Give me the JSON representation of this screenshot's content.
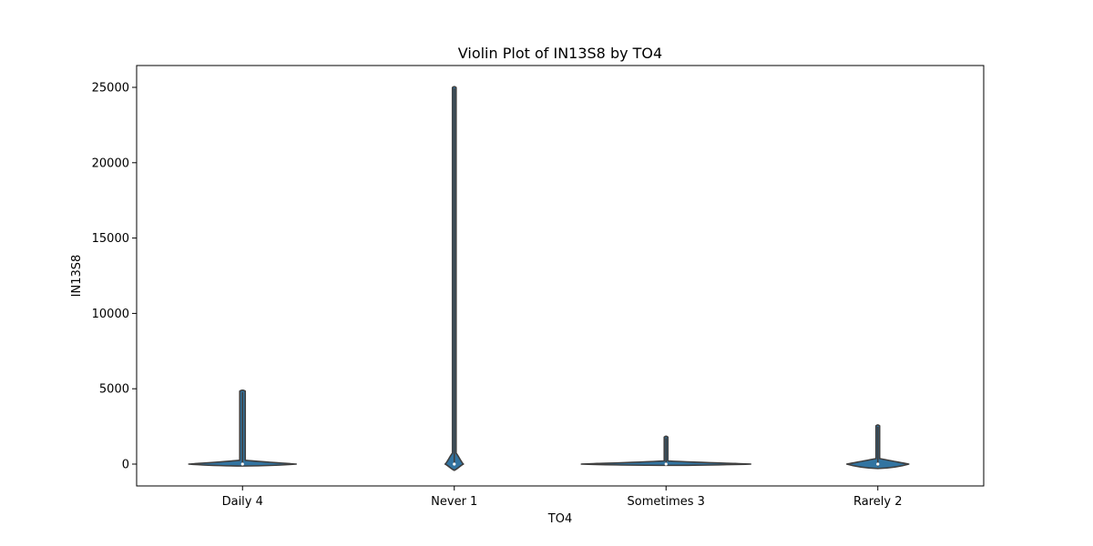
{
  "chart_data": {
    "type": "violin",
    "title": "Violin Plot of IN13S8 by TO4",
    "xlabel": "TO4",
    "ylabel": "IN13S8",
    "categories": [
      "Daily 4",
      "Never 1",
      "Sometimes 3",
      "Rarely 2"
    ],
    "ylim": [
      -1450,
      26450
    ],
    "yticks": [
      0,
      5000,
      10000,
      15000,
      20000,
      25000
    ],
    "grid": false,
    "violin_color": "#3274a1",
    "edge_color": "#3f3f3f",
    "violins": [
      {
        "category": "Daily 4",
        "min": -50,
        "max": 4900,
        "median": 0
      },
      {
        "category": "Never 1",
        "min": -50,
        "max": 25050,
        "median": 0
      },
      {
        "category": "Sometimes 3",
        "min": -30,
        "max": 1850,
        "median": 0
      },
      {
        "category": "Rarely 2",
        "min": -150,
        "max": 2600,
        "median": 0
      }
    ]
  }
}
